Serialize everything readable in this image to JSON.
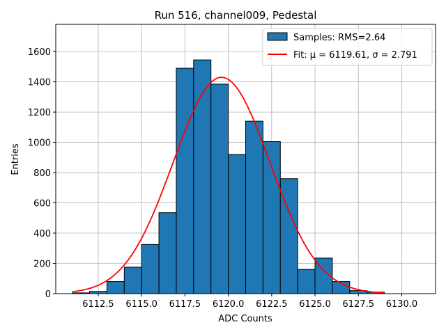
{
  "chart_data": {
    "type": "bar",
    "title": "Run 516, channel009, Pedestal",
    "xlabel": "ADC Counts",
    "ylabel": "Entries",
    "xlim": [
      6110.05,
      6131.95
    ],
    "ylim": [
      0,
      1780
    ],
    "grid": true,
    "legend_position": "top-right",
    "x_ticks": [
      "6112.5",
      "6115.0",
      "6117.5",
      "6120.0",
      "6122.5",
      "6125.0",
      "6127.5",
      "6130.0"
    ],
    "y_ticks": [
      "0",
      "200",
      "400",
      "600",
      "800",
      "1000",
      "1200",
      "1400",
      "1600"
    ],
    "bin_edges": [
      6111,
      6112,
      6113,
      6114,
      6115,
      6116,
      6117,
      6118,
      6119,
      6120,
      6121,
      6122,
      6123,
      6124,
      6125,
      6126,
      6127,
      6128,
      6129,
      6130,
      6131
    ],
    "counts": [
      5,
      15,
      80,
      175,
      325,
      535,
      1490,
      1545,
      1385,
      920,
      1140,
      1005,
      760,
      160,
      235,
      80,
      20,
      10,
      0,
      0
    ],
    "series": [
      {
        "name": "Samples: RMS=2.64",
        "kind": "histogram",
        "color": "#1f77b4",
        "edgecolor": "#000000"
      },
      {
        "name": "Fit: μ = 6119.61, σ = 2.791",
        "kind": "gaussian",
        "mu": 6119.61,
        "sigma": 2.791,
        "amplitude": 1430,
        "range": [
          6111,
          6129
        ],
        "color": "#ff0000"
      }
    ]
  }
}
